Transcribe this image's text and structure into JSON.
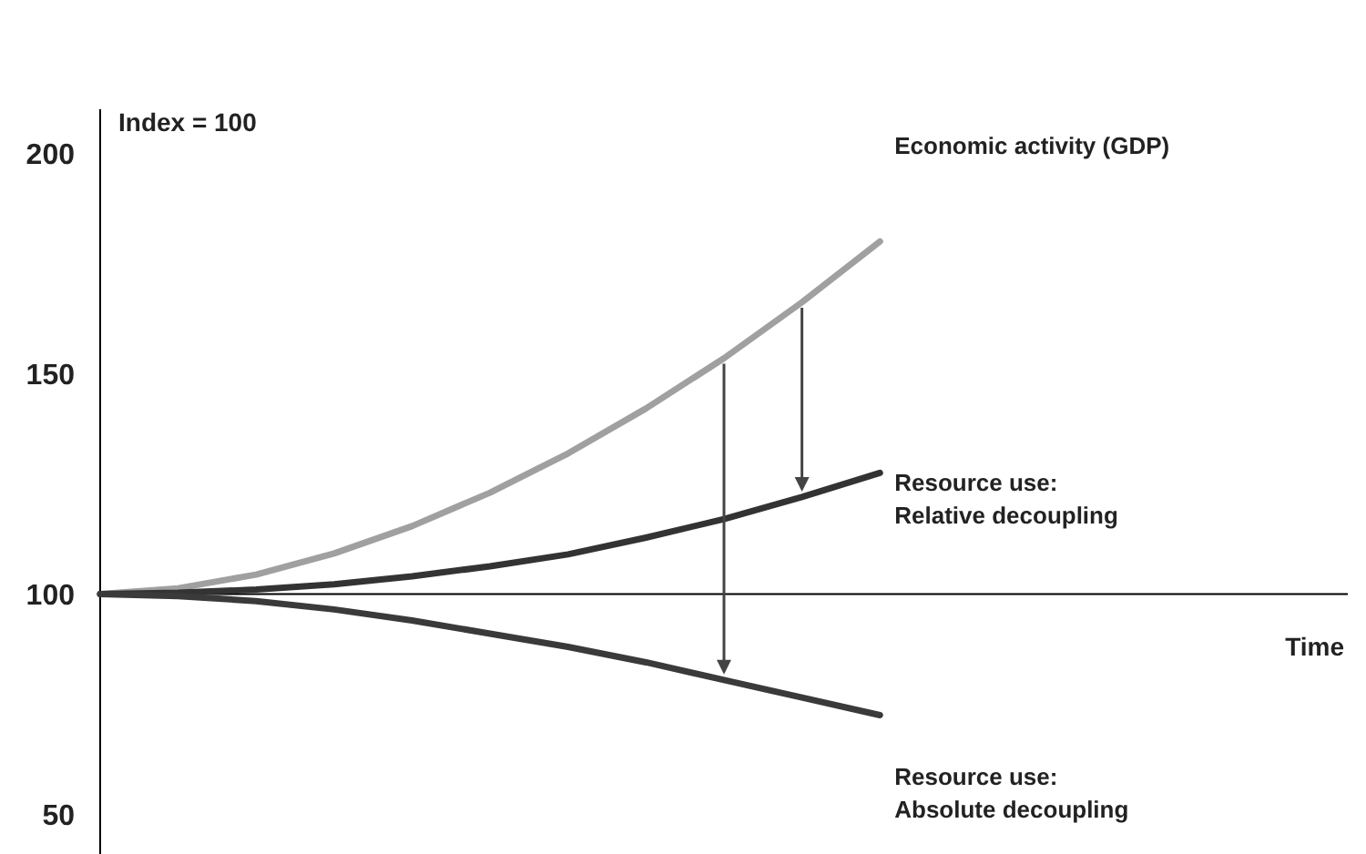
{
  "chart_data": {
    "type": "line",
    "xlabel": "Time",
    "annotations": [
      "Index = 100"
    ],
    "categories": [
      null,
      null,
      null,
      null,
      null,
      null,
      null,
      null,
      null,
      null,
      null,
      null,
      null,
      null,
      null,
      null,
      null
    ],
    "series": [
      {
        "name": "Economic activity (GDP)",
        "color": "#a0a0a0",
        "values": [
          100,
          101.3,
          104.4,
          109.2,
          115.4,
          123,
          131.9,
          142.1,
          153.5,
          166.2,
          180,
          null,
          null,
          null,
          null,
          null,
          null
        ]
      },
      {
        "name": "Resource use:\nRelative decoupling",
        "color": "#333333",
        "values": [
          100,
          100.3,
          101,
          102.2,
          104,
          106.3,
          109,
          112.8,
          117,
          122,
          127.5,
          null,
          null,
          null,
          null,
          null,
          null
        ]
      },
      {
        "name": "Resource use:\nAbsolute decoupling",
        "color": "#3a3a3a",
        "values": [
          100,
          99.5,
          98.4,
          96.5,
          94,
          91,
          88,
          84.5,
          80.5,
          76.5,
          72.5,
          null,
          null,
          null,
          null,
          null,
          null
        ]
      }
    ],
    "ylim": [
      41,
      210
    ],
    "yticks": [
      50,
      100,
      150,
      200
    ],
    "ref_lines": [
      {
        "axis": "y",
        "value": 100
      }
    ],
    "tick_labels": "y",
    "marker": "none",
    "line_style": "solid"
  }
}
